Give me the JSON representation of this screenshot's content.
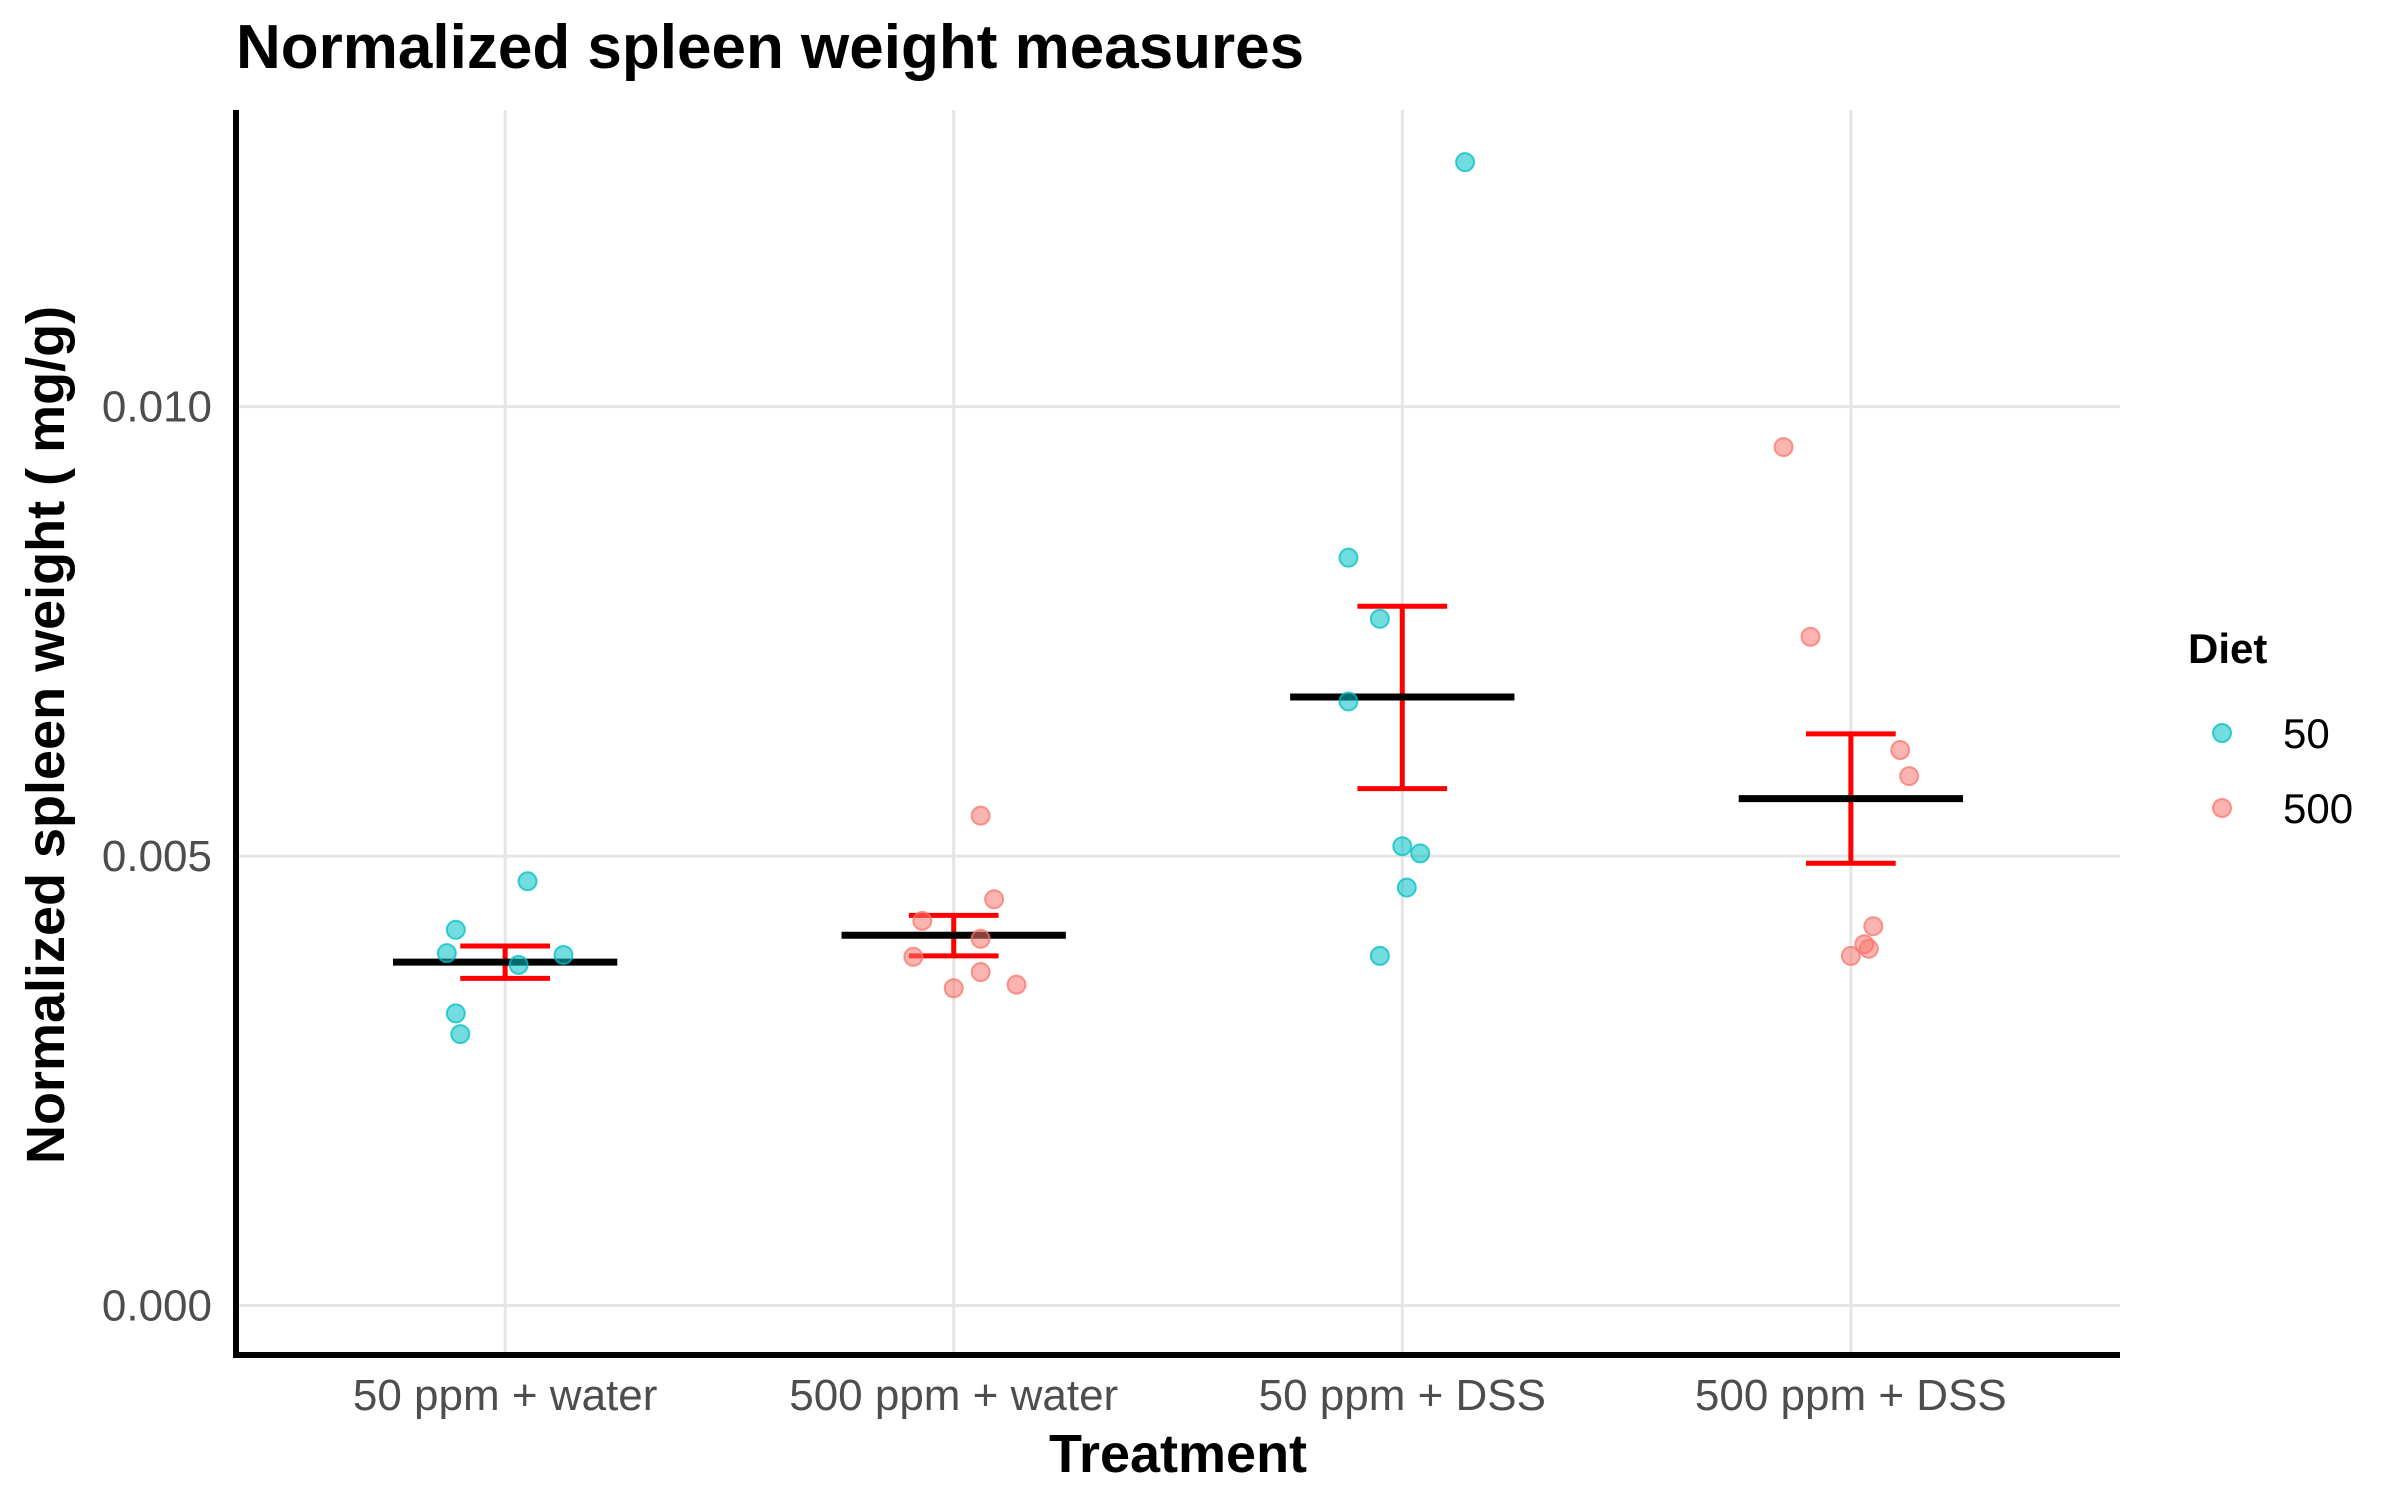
{
  "chart_data": {
    "type": "scatter",
    "title": "Normalized spleen weight measures",
    "xlabel": "Treatment",
    "ylabel": "Normalized spleen weight ( mg/g)",
    "categories": [
      "50 ppm + water",
      "500 ppm + water",
      "50 ppm + DSS",
      "500 ppm + DSS"
    ],
    "ylim": [
      -0.00055,
      0.0133
    ],
    "yticks": [
      0.0,
      0.005,
      0.01
    ],
    "ytick_labels": [
      "0.000",
      "0.005",
      "0.010"
    ],
    "grid": true,
    "legend": {
      "title": "Diet",
      "placement": "right",
      "entries": [
        {
          "label": "50",
          "color": "#00BFC4"
        },
        {
          "label": "500",
          "color": "#F8766D"
        }
      ]
    },
    "series": [
      {
        "name": "50",
        "color": "#00BFC4",
        "points": [
          {
            "x": "50 ppm + water",
            "offset": -0.11,
            "y": 0.00418
          },
          {
            "x": "50 ppm + water",
            "offset": -0.13,
            "y": 0.00392
          },
          {
            "x": "50 ppm + water",
            "offset": 0.05,
            "y": 0.00472
          },
          {
            "x": "50 ppm + water",
            "offset": 0.03,
            "y": 0.00379
          },
          {
            "x": "50 ppm + water",
            "offset": 0.13,
            "y": 0.0039
          },
          {
            "x": "50 ppm + water",
            "offset": -0.11,
            "y": 0.00325
          },
          {
            "x": "50 ppm + water",
            "offset": -0.1,
            "y": 0.00302
          },
          {
            "x": "50 ppm + DSS",
            "offset": 0.14,
            "y": 0.01272
          },
          {
            "x": "50 ppm + DSS",
            "offset": -0.12,
            "y": 0.00832
          },
          {
            "x": "50 ppm + DSS",
            "offset": -0.05,
            "y": 0.00764
          },
          {
            "x": "50 ppm + DSS",
            "offset": -0.12,
            "y": 0.00672
          },
          {
            "x": "50 ppm + DSS",
            "offset": 0.0,
            "y": 0.00511
          },
          {
            "x": "50 ppm + DSS",
            "offset": 0.04,
            "y": 0.00503
          },
          {
            "x": "50 ppm + DSS",
            "offset": 0.01,
            "y": 0.00465
          },
          {
            "x": "50 ppm + DSS",
            "offset": -0.05,
            "y": 0.00389
          }
        ]
      },
      {
        "name": "500",
        "color": "#F8766D",
        "points": [
          {
            "x": "500 ppm + water",
            "offset": 0.06,
            "y": 0.00545
          },
          {
            "x": "500 ppm + water",
            "offset": 0.09,
            "y": 0.00452
          },
          {
            "x": "500 ppm + water",
            "offset": -0.07,
            "y": 0.00428
          },
          {
            "x": "500 ppm + water",
            "offset": 0.06,
            "y": 0.00408
          },
          {
            "x": "500 ppm + water",
            "offset": -0.09,
            "y": 0.00388
          },
          {
            "x": "500 ppm + water",
            "offset": 0.06,
            "y": 0.00371
          },
          {
            "x": "500 ppm + water",
            "offset": 0.14,
            "y": 0.00357
          },
          {
            "x": "500 ppm + water",
            "offset": 0.0,
            "y": 0.00353
          },
          {
            "x": "500 ppm + DSS",
            "offset": -0.15,
            "y": 0.00955
          },
          {
            "x": "500 ppm + DSS",
            "offset": -0.09,
            "y": 0.00744
          },
          {
            "x": "500 ppm + DSS",
            "offset": 0.11,
            "y": 0.00618
          },
          {
            "x": "500 ppm + DSS",
            "offset": 0.13,
            "y": 0.00589
          },
          {
            "x": "500 ppm + DSS",
            "offset": 0.05,
            "y": 0.00422
          },
          {
            "x": "500 ppm + DSS",
            "offset": 0.03,
            "y": 0.00402
          },
          {
            "x": "500 ppm + DSS",
            "offset": 0.04,
            "y": 0.00397
          },
          {
            "x": "500 ppm + DSS",
            "offset": 0.0,
            "y": 0.00389
          }
        ]
      }
    ],
    "summary": [
      {
        "x": "50 ppm + water",
        "mean": 0.00382,
        "lower": 0.00364,
        "upper": 0.004
      },
      {
        "x": "500 ppm + water",
        "mean": 0.00412,
        "lower": 0.00389,
        "upper": 0.00434
      },
      {
        "x": "50 ppm + DSS",
        "mean": 0.00677,
        "lower": 0.00575,
        "upper": 0.00778
      },
      {
        "x": "500 ppm + DSS",
        "mean": 0.00564,
        "lower": 0.00492,
        "upper": 0.00636
      }
    ],
    "mean_color": "#000000",
    "errorbar_color": "#FF0000"
  }
}
